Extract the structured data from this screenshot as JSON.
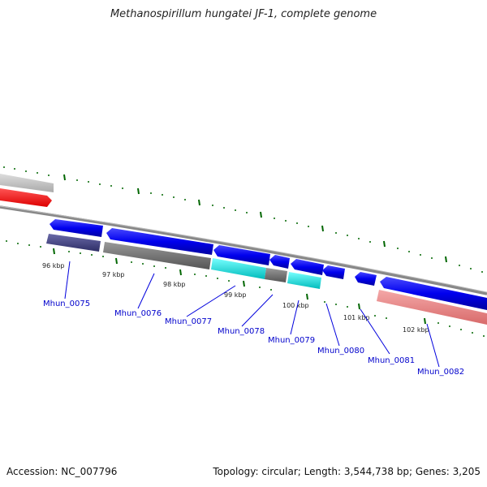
{
  "header": {
    "title": "Methanospirillum hungatei JF-1, complete genome"
  },
  "footer": {
    "accession": "Accession: NC_007796",
    "summary": "Topology: circular; Length: 3,544,738 bp; Genes: 3,205"
  },
  "ruler": {
    "labels": [
      "96 kbp",
      "97 kbp",
      "98 kbp",
      "99 kbp",
      "100 kbp",
      "101 kbp",
      "102 kbp"
    ]
  },
  "genes": {
    "labels": [
      "Mhun_0075",
      "Mhun_0076",
      "Mhun_0077",
      "Mhun_0078",
      "Mhun_0079",
      "Mhun_0080",
      "Mhun_0081",
      "Mhun_0082"
    ]
  },
  "colors": {
    "cds_blue": "#0000ee",
    "backbone": "#888888",
    "tick_green": "#006600",
    "gene_label": "#0000cc",
    "feature_gray": "#666666",
    "feature_cyan": "#00cccc",
    "feature_red": "#ff0000",
    "feature_pink": "#ee8888",
    "feature_navy": "#44447a"
  }
}
